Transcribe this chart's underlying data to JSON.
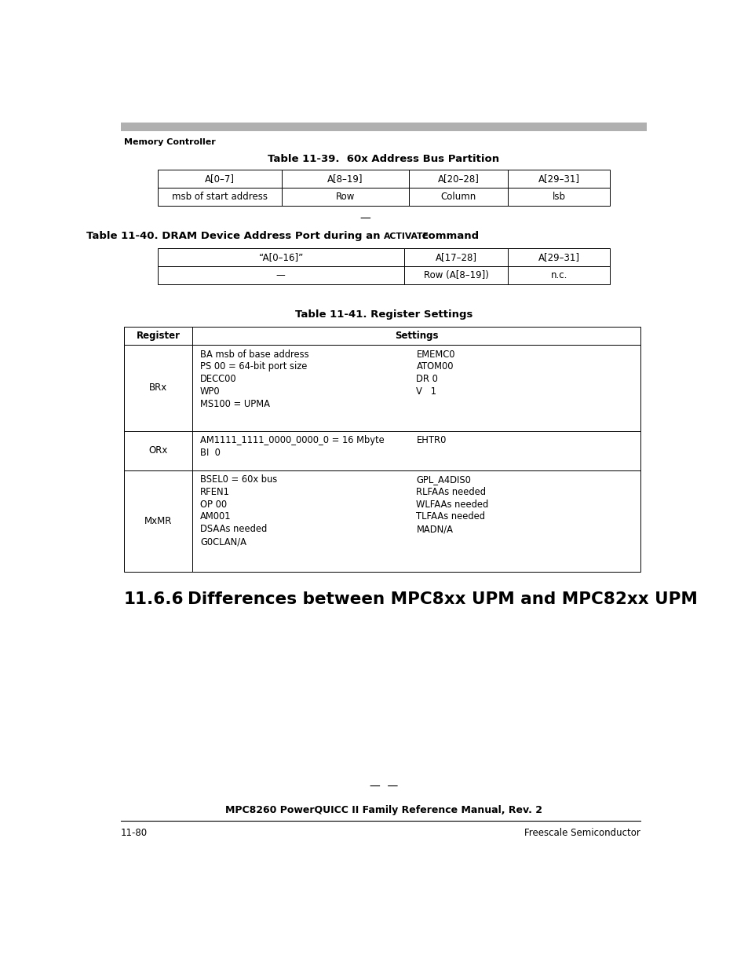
{
  "bg_color": "#ffffff",
  "page_width": 9.54,
  "page_height": 12.35,
  "header_bar_color": "#b0b0b0",
  "header_text": "Memory Controller",
  "table1_title": "Table 11-39.  60x Address Bus Partition",
  "table1_headers": [
    "A[0–7]",
    "A[8–19]",
    "A[20–28]",
    "A[29–31]"
  ],
  "table1_row": [
    "msb of start address",
    "Row",
    "Column",
    "lsb"
  ],
  "table2_title_part1": "Table 11-40. DRAM Device Address Port during an ",
  "table2_title_activate": "ACTIVATE",
  "table2_title_part2": " command",
  "table2_headers": [
    "“A[0–16]”",
    "A[17–28]",
    "A[29–31]"
  ],
  "table2_row": [
    "—",
    "Row (A[8–19])",
    "n.c."
  ],
  "table3_title": "Table 11-41. Register Settings",
  "table3_header_col1": "Register",
  "table3_header_col2": "Settings",
  "table3_rows": [
    {
      "reg": "BRx",
      "left": [
        "BA msb of base address",
        "PS 00 = 64-bit port size",
        "DECC00",
        "WP0",
        "MS100 = UPMA"
      ],
      "right": [
        "EMEMC0",
        "ATOM00",
        "DR 0",
        "V   1"
      ]
    },
    {
      "reg": "ORx",
      "left": [
        "AM1111_1111_0000_0000_0 = 16 Mbyte",
        "BI  0"
      ],
      "right": [
        "EHTR0"
      ]
    },
    {
      "reg": "MxMR",
      "left": [
        "BSEL0 = 60x bus",
        "RFEN1",
        "OP 00",
        "AM001",
        "DSAAs needed",
        "G0CLAN/A"
      ],
      "right": [
        "GPL_A4DIS0",
        "RLFAAs needed",
        "WLFAAs needed",
        "TLFAAs needed",
        "MADN/A"
      ]
    }
  ],
  "section_heading_number": "11.6.6",
  "section_heading_text": "Differences between MPC8xx UPM and MPC82xx UPM",
  "footer_center": "MPC8260 PowerQUICC II Family Reference Manual, Rev. 2",
  "footer_left": "11-80",
  "footer_right": "Freescale Semiconductor",
  "separator_dash": "—",
  "double_dash": "—  —"
}
